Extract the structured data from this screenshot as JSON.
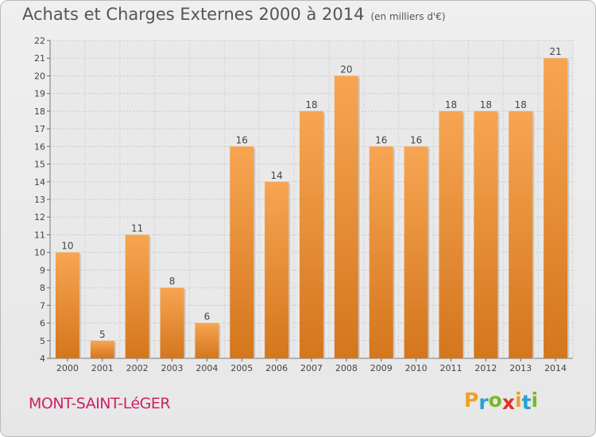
{
  "title": "Achats et Charges Externes 2000 à 2014",
  "subtitle": "(en milliers d'€)",
  "commune": "MONT-SAINT-LéGER",
  "logo": {
    "letters": [
      "P",
      "r",
      "o",
      "x",
      "i",
      "t",
      "i"
    ],
    "colors": [
      "#f0a020",
      "#2a9fd6",
      "#7bb82a",
      "#e2322c",
      "#f0a020",
      "#2a9fd6",
      "#7bb82a"
    ]
  },
  "colors": {
    "bar_top": "#f7a552",
    "bar_bottom": "#d4761c",
    "title": "#555555",
    "commune": "#cc2266"
  },
  "chart_data": {
    "type": "bar",
    "categories": [
      "2000",
      "2001",
      "2002",
      "2003",
      "2004",
      "2005",
      "2006",
      "2007",
      "2008",
      "2009",
      "2010",
      "2011",
      "2012",
      "2013",
      "2014"
    ],
    "values": [
      10,
      5,
      11,
      8,
      6,
      16,
      14,
      18,
      20,
      16,
      16,
      18,
      18,
      18,
      21
    ],
    "ylim": [
      4,
      22
    ],
    "yticks": [
      4,
      5,
      6,
      7,
      8,
      9,
      10,
      11,
      12,
      13,
      14,
      15,
      16,
      17,
      18,
      19,
      20,
      21,
      22
    ],
    "grid": true,
    "xlabel": "",
    "ylabel": ""
  }
}
